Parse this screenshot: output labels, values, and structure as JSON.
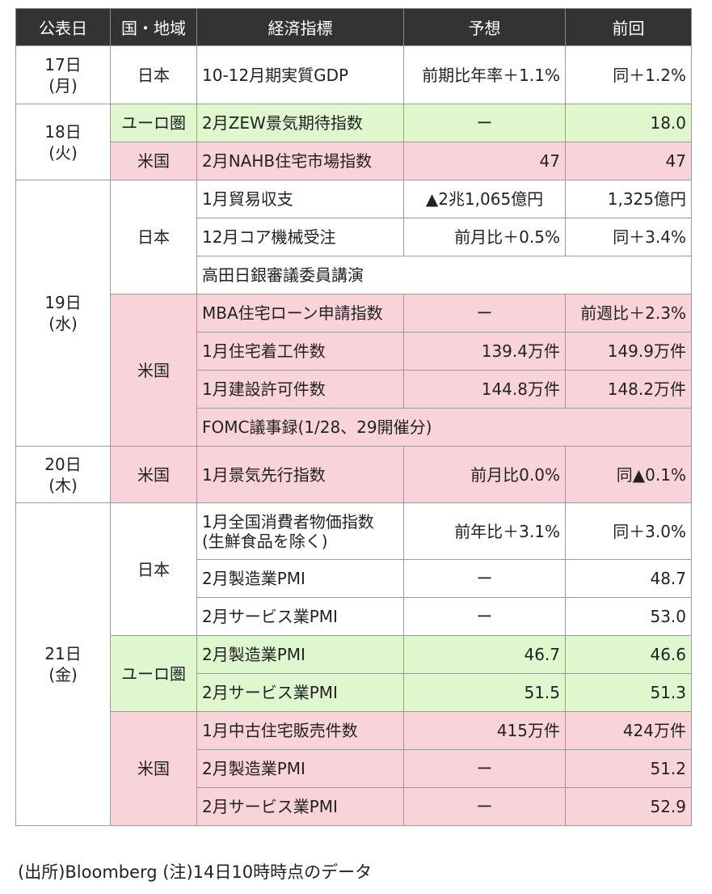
{
  "headers": [
    "公表日",
    "国・地域",
    "経済指標",
    "予想",
    "前回"
  ],
  "dates": {
    "d17": [
      "17日",
      "(月)"
    ],
    "d18": [
      "18日",
      "(火)"
    ],
    "d19": [
      "19日",
      "(水)"
    ],
    "d20": [
      "20日",
      "(木)"
    ],
    "d21": [
      "21日",
      "(金)"
    ]
  },
  "regions": {
    "japan": "日本",
    "euro": "ユーロ圏",
    "us": "米国"
  },
  "rows": [
    {
      "indicator": "10-12月期実質GDP",
      "forecast": "前期比年率＋1.1%",
      "previous": "同＋1.2%"
    },
    {
      "indicator": "2月ZEW景気期待指数",
      "forecast": "ー",
      "previous": "18.0"
    },
    {
      "indicator": "2月NAHB住宅市場指数",
      "forecast": "47",
      "previous": "47"
    },
    {
      "indicator": "1月貿易収支",
      "forecast": "▲2兆1,065億円",
      "previous": "1,325億円"
    },
    {
      "indicator": "12月コア機械受注",
      "forecast": "前月比＋0.5%",
      "previous": "同＋3.4%"
    },
    {
      "indicator": "高田日銀審議委員講演"
    },
    {
      "indicator": "MBA住宅ローン申請指数",
      "forecast": "ー",
      "previous": "前週比＋2.3%"
    },
    {
      "indicator": "1月住宅着工件数",
      "forecast": "139.4万件",
      "previous": "149.9万件"
    },
    {
      "indicator": "1月建設許可件数",
      "forecast": "144.8万件",
      "previous": "148.2万件"
    },
    {
      "indicator": "FOMC議事録(1/28、29開催分)"
    },
    {
      "indicator": "1月景気先行指数",
      "forecast": "前月比0.0%",
      "previous": "同▲0.1%"
    },
    {
      "indicator_lines": [
        "1月全国消費者物価指数",
        "(生鮮食品を除く)"
      ],
      "forecast": "前年比＋3.1%",
      "previous": "同＋3.0%"
    },
    {
      "indicator": "2月製造業PMI",
      "forecast": "ー",
      "previous": "48.7"
    },
    {
      "indicator": "2月サービス業PMI",
      "forecast": "ー",
      "previous": "53.0"
    },
    {
      "indicator": "2月製造業PMI",
      "forecast": "46.7",
      "previous": "46.6"
    },
    {
      "indicator": "2月サービス業PMI",
      "forecast": "51.5",
      "previous": "51.3"
    },
    {
      "indicator": "1月中古住宅販売件数",
      "forecast": "415万件",
      "previous": "424万件"
    },
    {
      "indicator": "2月製造業PMI",
      "forecast": "ー",
      "previous": "51.2"
    },
    {
      "indicator": "2月サービス業PMI",
      "forecast": "ー",
      "previous": "52.9"
    }
  ],
  "note": "(出所)Bloomberg (注)14日10時時点のデータ",
  "colors": {
    "header_bg": "#333333",
    "euro_bg": "#dff7cf",
    "us_bg": "#f9d3da",
    "japan_bg": "#ffffff"
  }
}
